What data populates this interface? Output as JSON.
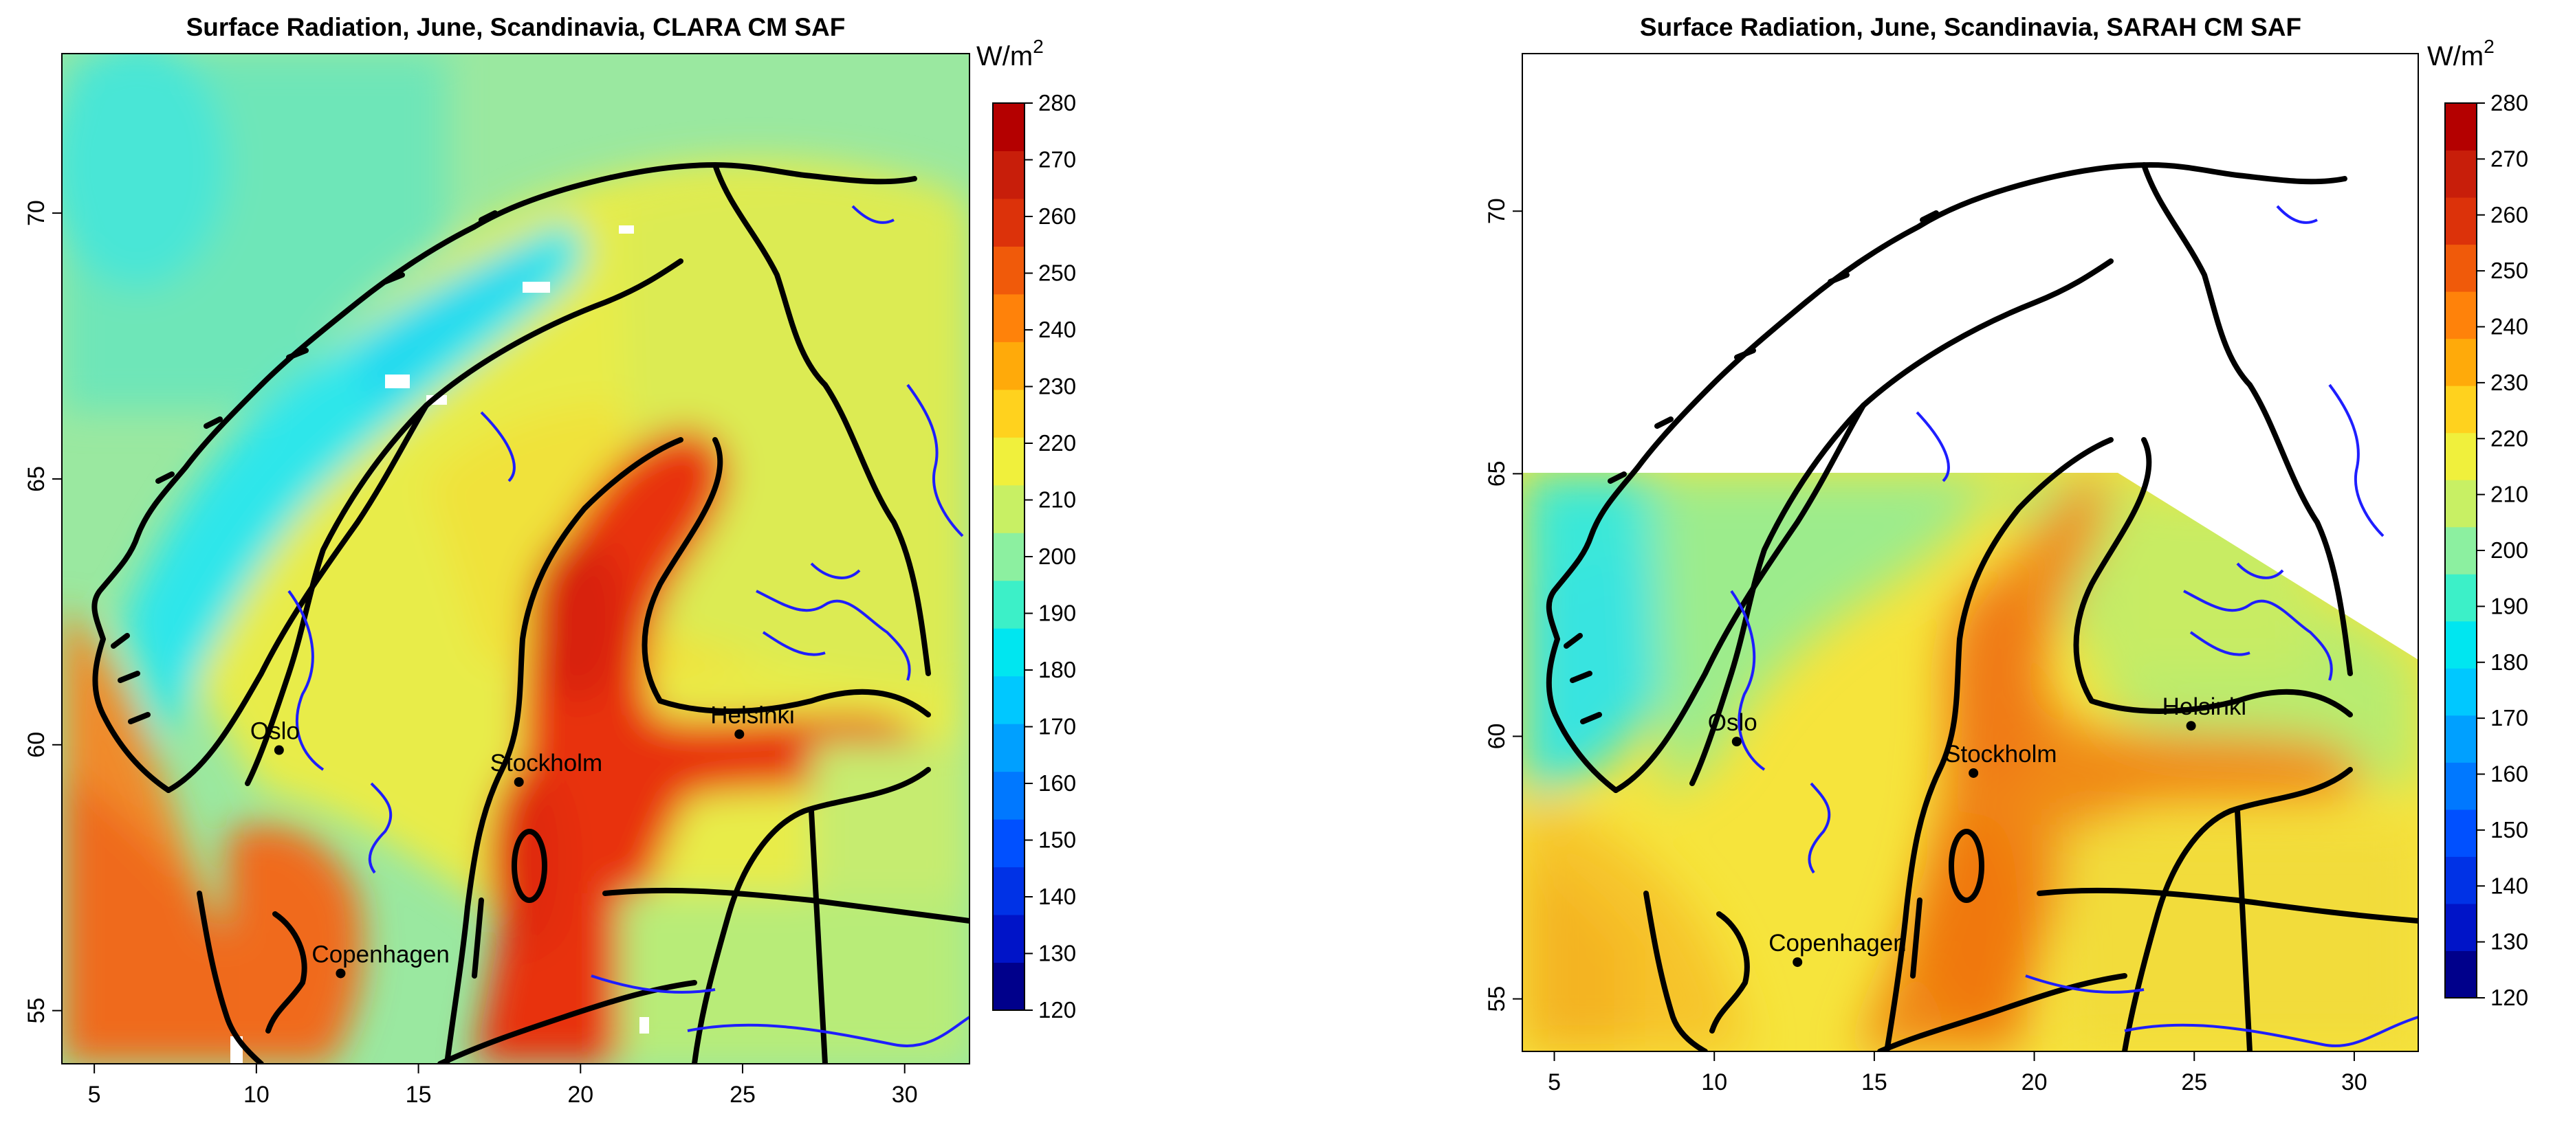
{
  "colorbar": {
    "unit_base": "W/m",
    "unit_exp": "2",
    "min": 120,
    "max": 280,
    "step": 10,
    "ticks": [
      "120",
      "130",
      "140",
      "150",
      "160",
      "170",
      "180",
      "190",
      "200",
      "210",
      "220",
      "230",
      "240",
      "250",
      "260",
      "270",
      "280"
    ],
    "colors": [
      "#00008b",
      "#0014c8",
      "#0032e6",
      "#0050ff",
      "#0078ff",
      "#00a0ff",
      "#00c8ff",
      "#00e6f0",
      "#3cf0c8",
      "#8cf0a0",
      "#c8f064",
      "#f0f03c",
      "#ffd21e",
      "#ffaa0a",
      "#ff820a",
      "#f05a0a",
      "#dc320a",
      "#c81e0a",
      "#b40000"
    ]
  },
  "axes": {
    "x_range": [
      4,
      32
    ],
    "y_range": [
      54,
      73
    ],
    "x_ticks": [
      "5",
      "10",
      "15",
      "20",
      "25",
      "30"
    ],
    "y_ticks": [
      "55",
      "60",
      "65",
      "70"
    ]
  },
  "panels": [
    {
      "id": "clara",
      "title": "Surface Radiation, June, Scandinavia, CLARA CM SAF",
      "data_coverage": "full",
      "background_value": 215,
      "hotspot_value": 265
    },
    {
      "id": "sarah",
      "title": "Surface Radiation, June, Scandinavia, SARAH CM SAF",
      "data_coverage": "south of 65N",
      "background_value": 225,
      "hotspot_value": 250
    }
  ],
  "cities": [
    {
      "name": "Oslo",
      "lon": 10.7,
      "lat": 59.9
    },
    {
      "name": "Stockholm",
      "lon": 18.1,
      "lat": 59.3
    },
    {
      "name": "Helsinki",
      "lon": 24.9,
      "lat": 60.2
    },
    {
      "name": "Copenhagen",
      "lon": 12.6,
      "lat": 55.7
    }
  ],
  "colors": {
    "coastline": "#000000",
    "lakes_rivers": "#1e1eff",
    "land_mid": "#f0e640",
    "sea_hot": "#e8360a",
    "mountains_cool": "#30e6e6",
    "open_sea": "#78e8a8"
  }
}
